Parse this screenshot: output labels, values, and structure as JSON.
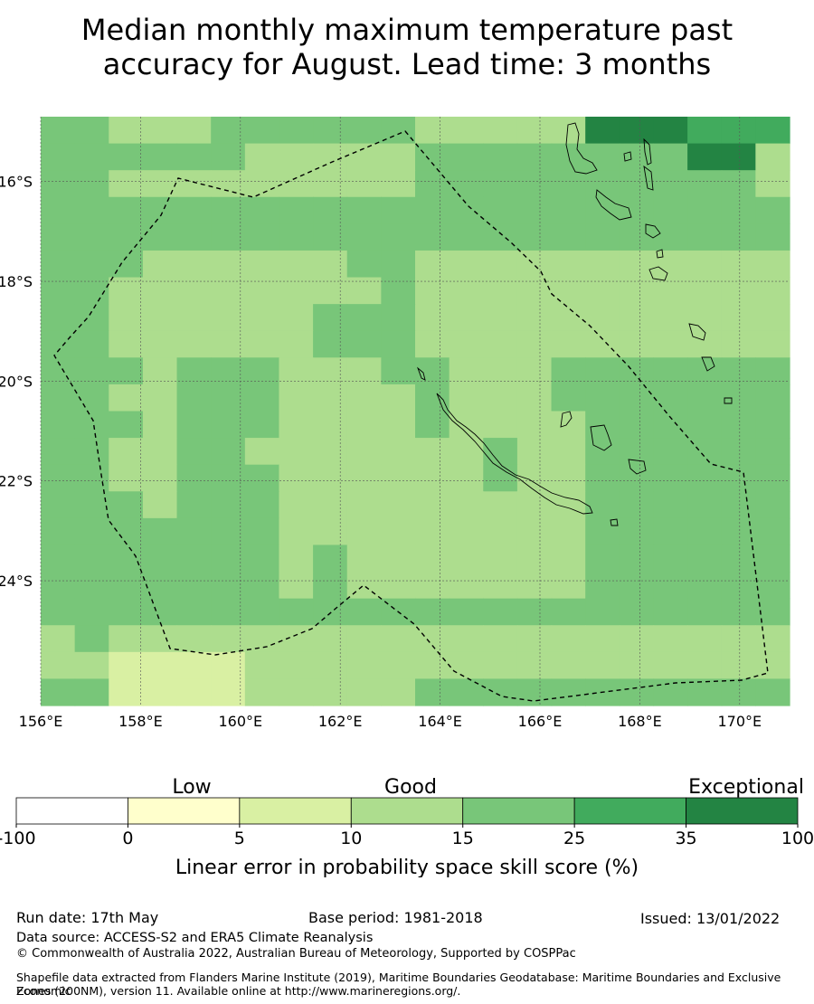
{
  "title": {
    "line1": "Median monthly maximum temperature past",
    "line2": "accuracy for August. Lead time: 3 months"
  },
  "map": {
    "lon_range": [
      156,
      171
    ],
    "lat_range": [
      -26.5,
      -14.7
    ],
    "lat_ticks": [
      "16°S",
      "18°S",
      "20°S",
      "22°S",
      "24°S"
    ],
    "lon_ticks": [
      "156°E",
      "158°E",
      "160°E",
      "162°E",
      "164°E",
      "166°E",
      "168°E",
      "170°E"
    ],
    "grid": true,
    "skill_grid_rows": [
      "4433344444433333666555",
      "4444443333344444444663",
      "4433333333344444444443",
      "4444444444444444444444",
      "4444444444444444444444",
      "4443333334433333333333",
      "4433333333433333333333",
      "4433333344433333333333",
      "4433333344433333333333",
      "4443444333443334444444",
      "4433444333343334444444",
      "4443444333343333444444",
      "4433443333333433444444",
      "4433444333333433444444",
      "4443444333333333444444",
      "4444444333333333444444",
      "4444444343333333444444",
      "4444444343333333444444",
      "4444444444444444444444",
      "3433333333333333333333",
      "3322223333333333333333",
      "4422223333344444444444"
    ]
  },
  "legend": {
    "categories": {
      "low": "Low",
      "good": "Good",
      "exceptional": "Exceptional"
    },
    "tick_labels": [
      "-100",
      "0",
      "5",
      "10",
      "15",
      "25",
      "35",
      "100"
    ],
    "colors": [
      "#ffffff",
      "#ffffcc",
      "#d9f0a3",
      "#addd8e",
      "#78c679",
      "#41ab5d",
      "#238443"
    ],
    "title": "Linear error in probability space skill score (%)"
  },
  "footer": {
    "run_date": "Run date: 17th May",
    "base_period": "Base period: 1981-2018",
    "issued": "Issued: 13/01/2022",
    "data_source": "Data source: ACCESS-S2 and ERA5 Climate Reanalysis",
    "copyright": "© Commonwealth of Australia 2022, Australian Bureau of Meteorology, Supported by COSPPac",
    "shapefile_line1": "Shapefile data extracted from Flanders Marine Institute (2019), Maritime Boundaries Geodatabase: Maritime Boundaries and Exclusive Economic",
    "shapefile_line2": "Zones (200NM), version 11. Available online at http://www.marineregions.org/."
  }
}
